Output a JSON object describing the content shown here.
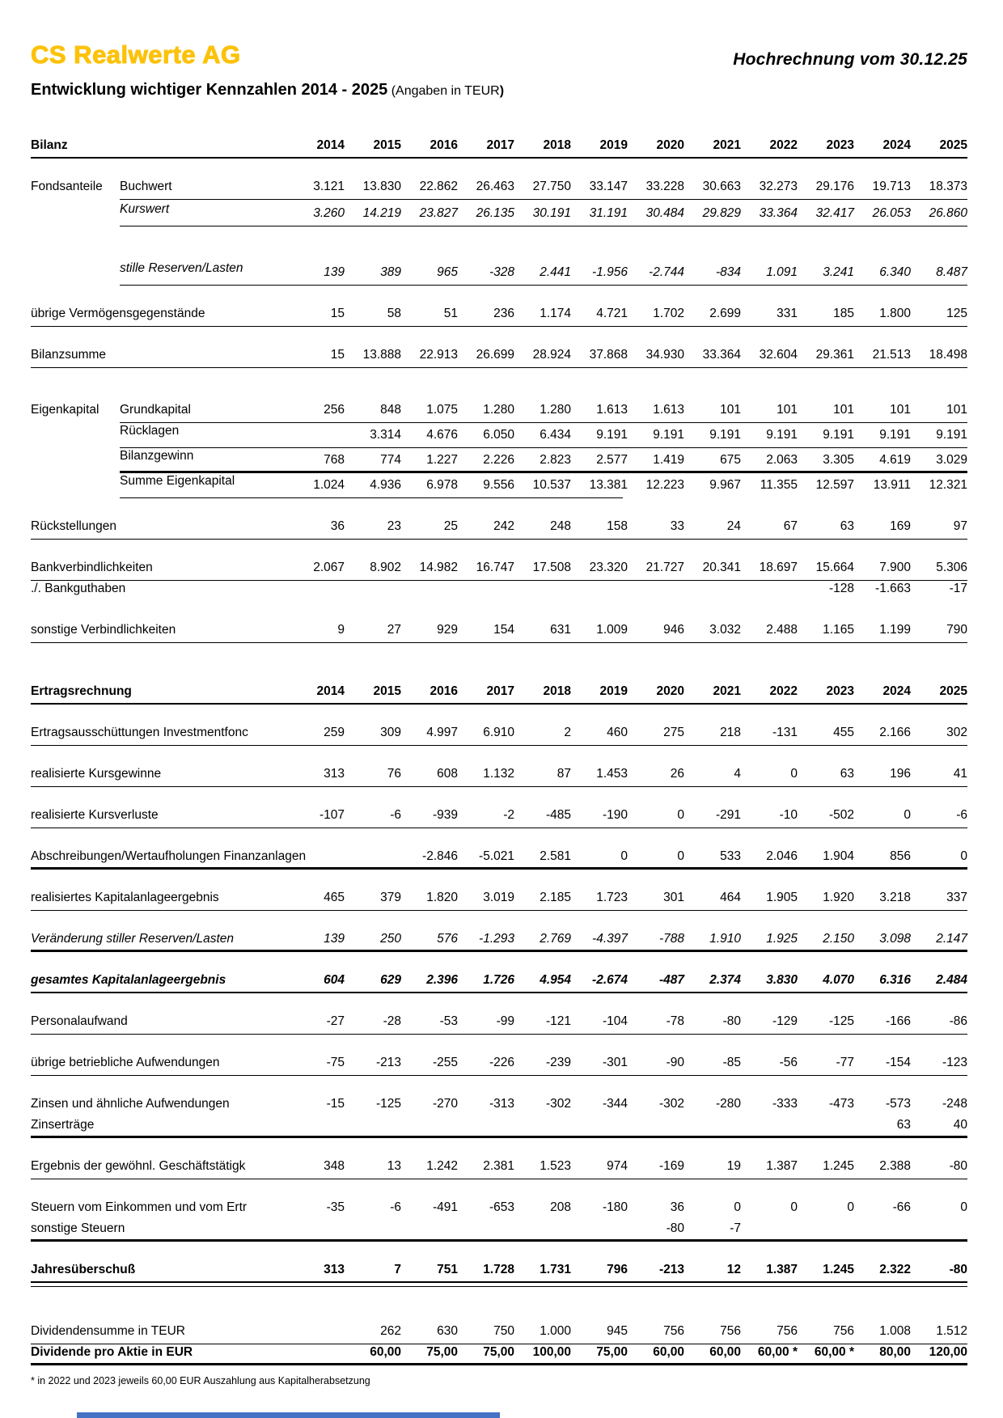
{
  "header": {
    "logo": "CS Realwerte AG",
    "projection": "Hochrechnung vom 30.12.25",
    "title": "Entwicklung wichtiger Kennzahlen 2014 - 2025",
    "title_note": " (Angaben in TEUR",
    "title_note_bold": ")"
  },
  "colors": {
    "brand": "#FCC20A",
    "bottom_bar": "#4472C4"
  },
  "table": {
    "years": [
      "2014",
      "2015",
      "2016",
      "2017",
      "2018",
      "2019",
      "2020",
      "2021",
      "2022",
      "2023",
      "2024",
      "2025"
    ],
    "sections": [
      {
        "title": "Bilanz",
        "rows": [
          {
            "group": "Fondsanteile",
            "label": "Buchwert",
            "mt": "m",
            "rule": "thin",
            "indent": true,
            "values": [
              "3.121",
              "13.830",
              "22.862",
              "26.463",
              "27.750",
              "33.147",
              "33.228",
              "30.663",
              "32.273",
              "29.176",
              "19.713",
              "18.373"
            ]
          },
          {
            "group": "",
            "label": "Kurswert",
            "mt": "s",
            "italic": true,
            "rule": "thin",
            "indent": true,
            "values": [
              "3.260",
              "14.219",
              "23.827",
              "26.135",
              "30.191",
              "31.191",
              "30.484",
              "29.829",
              "33.364",
              "32.417",
              "26.053",
              "26.860"
            ]
          },
          {
            "group": "",
            "label": "stille Reserven/Lasten",
            "mt": "l",
            "italic": true,
            "rule": "thin",
            "indent": true,
            "values": [
              "139",
              "389",
              "965",
              "-328",
              "2.441",
              "-1.956",
              "-2.744",
              "-834",
              "1.091",
              "3.241",
              "6.340",
              "8.487"
            ]
          },
          {
            "group": "",
            "label": "übrige Vermögensgegenstände",
            "mt": "m",
            "rule": "thin",
            "values": [
              "15",
              "58",
              "51",
              "236",
              "1.174",
              "4.721",
              "1.702",
              "2.699",
              "331",
              "185",
              "1.800",
              "125"
            ]
          },
          {
            "group": "",
            "label": "Bilanzsumme",
            "mt": "m",
            "rule": "thin",
            "values": [
              "15",
              "13.888",
              "22.913",
              "26.699",
              "28.924",
              "37.868",
              "34.930",
              "33.364",
              "32.604",
              "29.361",
              "21.513",
              "18.498"
            ]
          },
          {
            "group": "Eigenkapital",
            "label": "Grundkapital",
            "mt": "l",
            "rule": "thin",
            "indent": true,
            "values": [
              "256",
              "848",
              "1.075",
              "1.280",
              "1.280",
              "1.613",
              "1.613",
              "101",
              "101",
              "101",
              "101",
              "101"
            ]
          },
          {
            "group": "",
            "label": "Rücklagen",
            "mt": "0",
            "rule": "thin",
            "indent": true,
            "values": [
              "",
              "3.314",
              "4.676",
              "6.050",
              "6.434",
              "9.191",
              "9.191",
              "9.191",
              "9.191",
              "9.191",
              "9.191",
              "9.191"
            ]
          },
          {
            "group": "",
            "label": "Bilanzgewinn",
            "mt": "0",
            "rule": "thick",
            "indent": true,
            "values": [
              "768",
              "774",
              "1.227",
              "2.226",
              "2.823",
              "2.577",
              "1.419",
              "675",
              "2.063",
              "3.305",
              "4.619",
              "3.029"
            ]
          },
          {
            "group": "",
            "label": "Summe Eigenkapital",
            "mt": "0",
            "rule": "thin",
            "indent": true,
            "short": true,
            "values": [
              "1.024",
              "4.936",
              "6.978",
              "9.556",
              "10.537",
              "13.381",
              "12.223",
              "9.967",
              "11.355",
              "12.597",
              "13.911",
              "12.321"
            ]
          },
          {
            "group": "",
            "label": "Rückstellungen",
            "mt": "m",
            "rule": "thin",
            "values": [
              "36",
              "23",
              "25",
              "242",
              "248",
              "158",
              "33",
              "24",
              "67",
              "63",
              "169",
              "97"
            ]
          },
          {
            "group": "",
            "label": "Bankverbindlichkeiten",
            "mt": "m",
            "rule": "thin",
            "values": [
              "2.067",
              "8.902",
              "14.982",
              "16.747",
              "17.508",
              "23.320",
              "21.727",
              "20.341",
              "18.697",
              "15.664",
              "7.900",
              "5.306"
            ]
          },
          {
            "group": "",
            "label": "./. Bankguthaben",
            "mt": "0",
            "rule": "none",
            "values": [
              "",
              "",
              "",
              "",
              "",
              "",
              "",
              "",
              "",
              "-128",
              "-1.663",
              "-17"
            ]
          },
          {
            "group": "",
            "label": "sonstige Verbindlichkeiten",
            "mt": "m",
            "rule": "thin",
            "values": [
              "9",
              "27",
              "929",
              "154",
              "631",
              "1.009",
              "946",
              "3.032",
              "2.488",
              "1.165",
              "1.199",
              "790"
            ]
          }
        ]
      },
      {
        "title": "Ertragsrechnung",
        "rows": [
          {
            "group": "",
            "label": "Ertragsausschüttungen Investmentfonc",
            "mt": "m",
            "rule": "thin",
            "values": [
              "259",
              "309",
              "4.997",
              "6.910",
              "2",
              "460",
              "275",
              "218",
              "-131",
              "455",
              "2.166",
              "302"
            ]
          },
          {
            "group": "",
            "label": "realisierte Kursgewinne",
            "mt": "m",
            "rule": "thin",
            "values": [
              "313",
              "76",
              "608",
              "1.132",
              "87",
              "1.453",
              "26",
              "4",
              "0",
              "63",
              "196",
              "41"
            ]
          },
          {
            "group": "",
            "label": "realisierte Kursverluste",
            "mt": "m",
            "rule": "thin",
            "values": [
              "-107",
              "-6",
              "-939",
              "-2",
              "-485",
              "-190",
              "0",
              "-291",
              "-10",
              "-502",
              "0",
              "-6"
            ]
          },
          {
            "group": "",
            "label": "Abschreibungen/Wertaufholungen Finanzanlagen",
            "mt": "m",
            "rule": "thick",
            "values": [
              "",
              "",
              "-2.846",
              "-5.021",
              "2.581",
              "0",
              "0",
              "533",
              "2.046",
              "1.904",
              "856",
              "0"
            ]
          },
          {
            "group": "",
            "label": "realisiertes Kapitalanlageergebnis",
            "mt": "m",
            "rule": "thin",
            "values": [
              "465",
              "379",
              "1.820",
              "3.019",
              "2.185",
              "1.723",
              "301",
              "464",
              "1.905",
              "1.920",
              "3.218",
              "337"
            ]
          },
          {
            "group": "",
            "label": "Veränderung stiller Reserven/Lasten",
            "mt": "m",
            "italic": true,
            "rule": "thick",
            "values": [
              "139",
              "250",
              "576",
              "-1.293",
              "2.769",
              "-4.397",
              "-788",
              "1.910",
              "1.925",
              "2.150",
              "3.098",
              "2.147"
            ]
          },
          {
            "group": "",
            "label": "gesamtes Kapitalanlageergebnis",
            "mt": "m",
            "italic": true,
            "bold": true,
            "rule": "medium",
            "values": [
              "604",
              "629",
              "2.396",
              "1.726",
              "4.954",
              "-2.674",
              "-487",
              "2.374",
              "3.830",
              "4.070",
              "6.316",
              "2.484"
            ]
          },
          {
            "group": "",
            "label": "Personalaufwand",
            "mt": "m",
            "rule": "thin",
            "values": [
              "-27",
              "-28",
              "-53",
              "-99",
              "-121",
              "-104",
              "-78",
              "-80",
              "-129",
              "-125",
              "-166",
              "-86"
            ]
          },
          {
            "group": "",
            "label": "übrige betriebliche Aufwendungen",
            "mt": "m",
            "rule": "thin",
            "values": [
              "-75",
              "-213",
              "-255",
              "-226",
              "-239",
              "-301",
              "-90",
              "-85",
              "-56",
              "-77",
              "-154",
              "-123"
            ]
          },
          {
            "group": "",
            "label": "Zinsen und ähnliche Aufwendungen",
            "mt": "m",
            "rule": "none",
            "values": [
              "-15",
              "-125",
              "-270",
              "-313",
              "-302",
              "-344",
              "-302",
              "-280",
              "-333",
              "-473",
              "-573",
              "-248"
            ]
          },
          {
            "group": "",
            "label": "Zinserträge",
            "mt": "0",
            "rule": "thick",
            "values": [
              "",
              "",
              "",
              "",
              "",
              "",
              "",
              "",
              "",
              "",
              "63",
              "40"
            ]
          },
          {
            "group": "",
            "label": "Ergebnis der gewöhnl. Geschäftstätigk",
            "mt": "m",
            "rule": "thin",
            "values": [
              "348",
              "13",
              "1.242",
              "2.381",
              "1.523",
              "974",
              "-169",
              "19",
              "1.387",
              "1.245",
              "2.388",
              "-80"
            ]
          },
          {
            "group": "",
            "label": "Steuern vom Einkommen und vom Ertr",
            "mt": "m",
            "rule": "none",
            "values": [
              "-35",
              "-6",
              "-491",
              "-653",
              "208",
              "-180",
              "36",
              "0",
              "0",
              "0",
              "-66",
              "0"
            ]
          },
          {
            "group": "",
            "label": "sonstige Steuern",
            "mt": "0",
            "rule": "thick",
            "values": [
              "",
              "",
              "",
              "",
              "",
              "",
              "-80",
              "-7",
              "",
              "",
              "",
              ""
            ]
          },
          {
            "group": "",
            "label": "Jahresüberschuß",
            "mt": "m",
            "bold": true,
            "rule": "double",
            "values": [
              "313",
              "7",
              "751",
              "1.728",
              "1.731",
              "796",
              "-213",
              "12",
              "1.387",
              "1.245",
              "2.322",
              "-80"
            ]
          },
          {
            "group": "",
            "label": "Dividendensumme in TEUR",
            "mt": "xl",
            "rule": "thin",
            "values": [
              "",
              "262",
              "630",
              "750",
              "1.000",
              "945",
              "756",
              "756",
              "756",
              "756",
              "1.008",
              "1.512"
            ]
          },
          {
            "group": "",
            "label": "Dividende pro Aktie in EUR",
            "mt": "0",
            "bold": true,
            "rule": "thick",
            "values": [
              "",
              "60,00",
              "75,00",
              "75,00",
              "100,00",
              "75,00",
              "60,00",
              "60,00",
              "60,00 *",
              "60,00 *",
              "80,00",
              "120,00"
            ]
          }
        ]
      }
    ]
  },
  "footer": {
    "note": "* in 2022 und 2023 jeweils 60,00 EUR Auszahlung aus Kapitalherabsetzung"
  }
}
